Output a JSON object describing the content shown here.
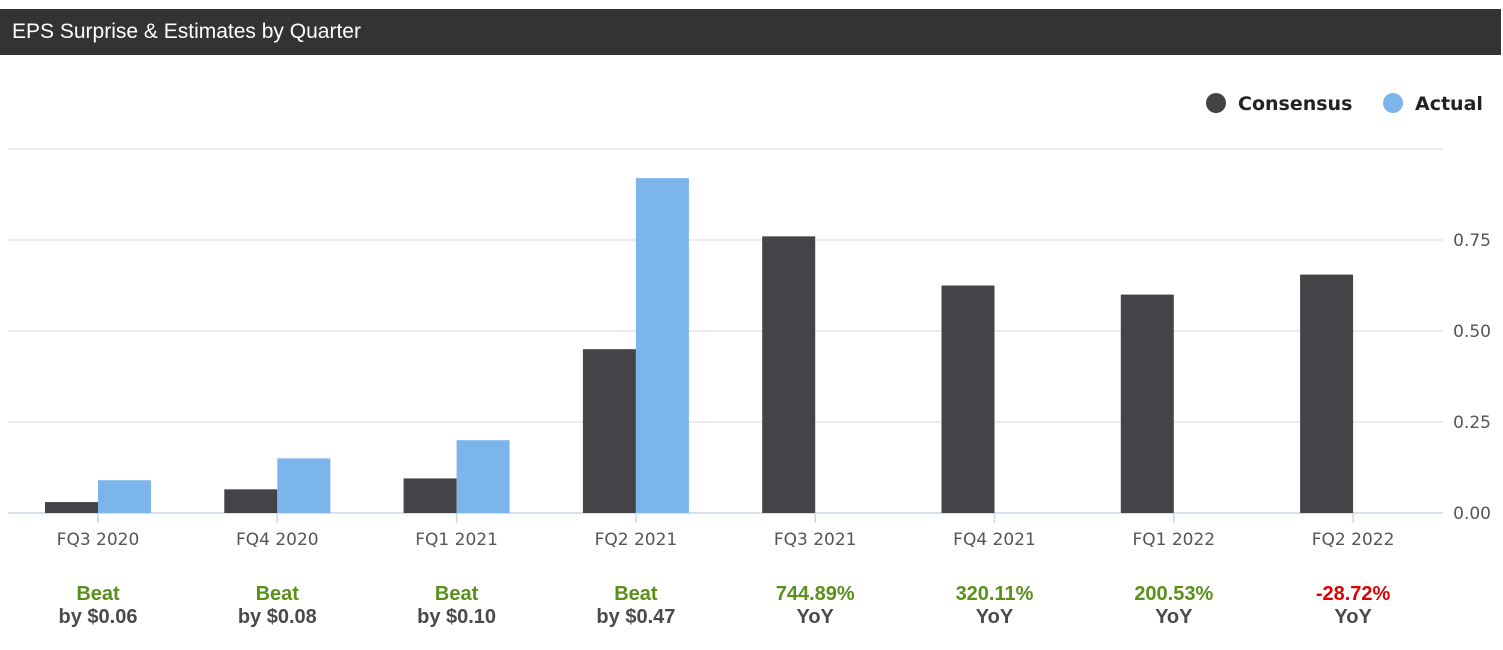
{
  "header": {
    "title": "EPS Surprise & Estimates by Quarter"
  },
  "colors": {
    "consensus": "#434348",
    "actual": "#7cb5ec",
    "positive": "#5a8f1a",
    "negative": "#e00000",
    "grid": "#e6e6e6",
    "axis": "#ccd6eb"
  },
  "chart_data": {
    "type": "bar",
    "categories": [
      "FQ3 2020",
      "FQ4 2020",
      "FQ1 2021",
      "FQ2 2021",
      "FQ3 2021",
      "FQ4 2021",
      "FQ1 2022",
      "FQ2 2022"
    ],
    "series": [
      {
        "name": "Consensus",
        "values": [
          0.03,
          0.065,
          0.095,
          0.45,
          0.76,
          0.625,
          0.6,
          0.655
        ]
      },
      {
        "name": "Actual",
        "values": [
          0.09,
          0.15,
          0.2,
          0.92,
          null,
          null,
          null,
          null
        ]
      }
    ],
    "y_ticks": [
      "0.00",
      "0.25",
      "0.50",
      "0.75"
    ],
    "ylim": [
      0,
      1.0
    ],
    "legend": {
      "position": "top-right",
      "items": [
        "Consensus",
        "Actual"
      ]
    },
    "grid": true,
    "y_axis_side": "right"
  },
  "summary": [
    {
      "top": "Beat",
      "bottom": "by $0.06",
      "status": "positive"
    },
    {
      "top": "Beat",
      "bottom": "by $0.08",
      "status": "positive"
    },
    {
      "top": "Beat",
      "bottom": "by $0.10",
      "status": "positive"
    },
    {
      "top": "Beat",
      "bottom": "by $0.47",
      "status": "positive"
    },
    {
      "top": "744.89%",
      "bottom": "YoY",
      "status": "positive"
    },
    {
      "top": "320.11%",
      "bottom": "YoY",
      "status": "positive"
    },
    {
      "top": "200.53%",
      "bottom": "YoY",
      "status": "positive"
    },
    {
      "top": "-28.72%",
      "bottom": "YoY",
      "status": "negative"
    }
  ]
}
